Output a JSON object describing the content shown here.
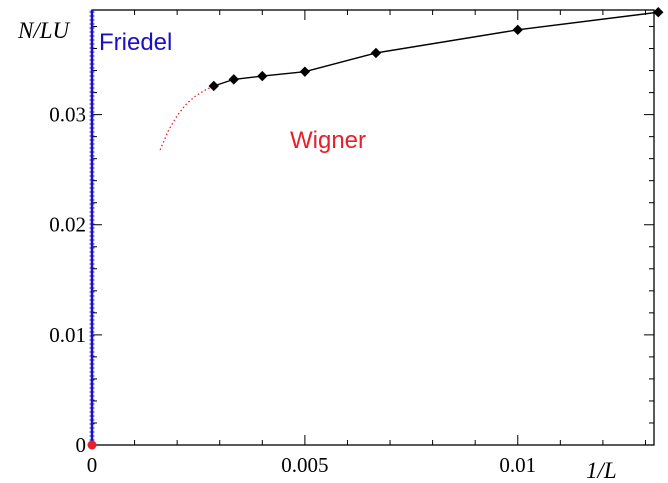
{
  "chart_data": {
    "type": "scatter",
    "title": "",
    "xlabel": "1/L",
    "ylabel": "N/LU",
    "xlim": [
      0,
      0.0132
    ],
    "ylim": [
      0,
      0.0395
    ],
    "x_ticks": [
      0,
      0.005,
      0.01
    ],
    "x_tick_labels": [
      "0",
      "0.005",
      "0.01"
    ],
    "y_ticks": [
      0,
      0.01,
      0.02,
      0.03
    ],
    "y_tick_labels": [
      "0",
      "0.01",
      "0.02",
      "0.03"
    ],
    "grid": false,
    "legend": "none",
    "series": [
      {
        "style": "line-with-diamond-markers",
        "color": "#000000",
        "x": [
          0.00286,
          0.00333,
          0.004,
          0.005,
          0.00667,
          0.01,
          0.0133
        ],
        "y": [
          0.0326,
          0.0332,
          0.0335,
          0.0339,
          0.0356,
          0.0377,
          0.0393
        ]
      },
      {
        "style": "dotted-line",
        "color": "#e8202a",
        "x": [
          0.0016,
          0.0018,
          0.002,
          0.0022,
          0.0024,
          0.0026,
          0.0028
        ],
        "y": [
          0.0268,
          0.0286,
          0.0299,
          0.0309,
          0.0316,
          0.0321,
          0.0325
        ]
      }
    ],
    "annotations": [
      {
        "text": "Friedel",
        "color": "#1a10c8"
      },
      {
        "text": "Wigner",
        "color": "#e8202a"
      }
    ]
  }
}
